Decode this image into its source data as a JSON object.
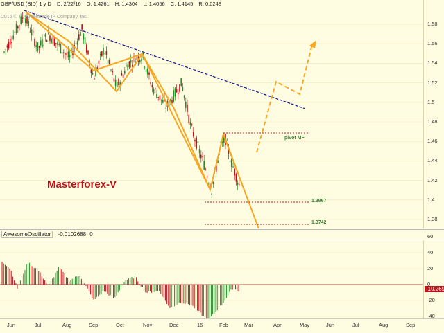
{
  "header": {
    "symbol": "GBP/USD (BID) 1 y D",
    "date": "D: 2/22/16",
    "open": "O: 1.4261",
    "high": "H: 1.4304",
    "low": "L: 1.4056",
    "close": "C: 1.4145",
    "range": "R: 0.0248"
  },
  "copyright": "2016 © TD Ameritrade IP Company, Inc.",
  "brand": "Masterforex-V",
  "pivot_label": "pivot MF",
  "levels": {
    "l1": "1.3967",
    "l2": "1.3742"
  },
  "price_ticks": [
    "1.58",
    "1.56",
    "1.54",
    "1.52",
    "1.5",
    "1.48",
    "1.46",
    "1.44",
    "1.42",
    "1.4",
    "1.38"
  ],
  "indicator": {
    "name": "AwesomeOscillator",
    "value": "-0.0102688",
    "extra": "0",
    "ticks": [
      "60",
      "40",
      "20",
      "0",
      "-20",
      "-40"
    ],
    "badge": "-10.269"
  },
  "time_ticks": [
    "Jun",
    "Jul",
    "Aug",
    "Sep",
    "Oct",
    "Nov",
    "Dec",
    "16",
    "Feb",
    "Mar",
    "Apr",
    "May",
    "Jun",
    "Jul",
    "Aug",
    "Sep"
  ],
  "colors": {
    "accent": "#f5a623",
    "trendline": "#1a1a8c",
    "brand": "#c0121a",
    "up": "#2a8a2a",
    "down": "#c0121a"
  },
  "chart_data": {
    "type": "line",
    "title": "GBP/USD (BID) 1 y D",
    "ylim": [
      1.37,
      1.6
    ],
    "wave_points": [
      {
        "date": "Jun",
        "price": 1.59
      },
      {
        "date": "Sep",
        "price": 1.51
      },
      {
        "date": "Nov",
        "price": 1.55
      },
      {
        "date": "Jan",
        "price": 1.41
      },
      {
        "date": "Feb",
        "price": 1.467
      },
      {
        "date": "Mar",
        "price": 1.365
      }
    ],
    "projection": [
      {
        "date": "Mar",
        "price": 1.45
      },
      {
        "date": "Apr",
        "price": 1.522
      },
      {
        "date": "Apr",
        "price": 1.508
      },
      {
        "date": "May",
        "price": 1.563
      }
    ],
    "oscillator_range": [
      -50,
      70
    ]
  }
}
